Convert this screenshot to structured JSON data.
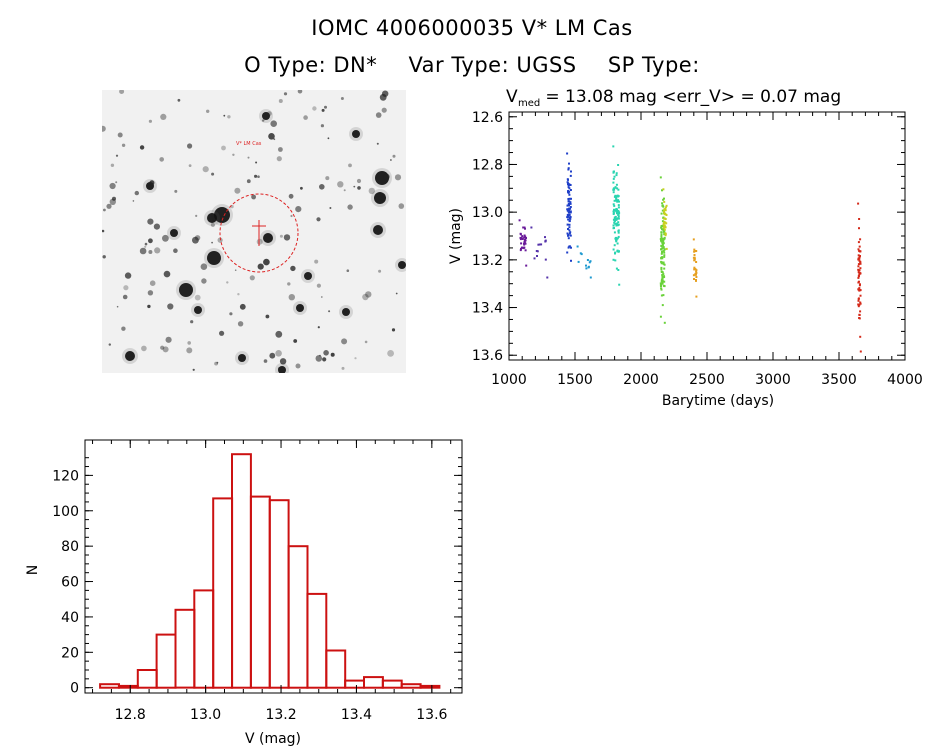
{
  "header": {
    "title": "IOMC 4006000035   V* LM Cas",
    "otype": "O Type: DN*",
    "vartype": "Var Type: UGSS",
    "sptype": "SP Type:"
  },
  "finder": {
    "label_top": "V* LM Cas",
    "colors": {
      "marker": "#dd2222",
      "stars": "#111111"
    }
  },
  "chart_data": [
    {
      "type": "scatter",
      "title_prefix": "V",
      "title_sub": "med",
      "title_rest": " = 13.08 mag <err_V> = 0.07 mag",
      "xlabel": "Barytime (days)",
      "ylabel": "V (mag)",
      "xlim": [
        1000,
        4000
      ],
      "ylim": [
        13.62,
        12.58
      ],
      "y_inverted": true,
      "xticks": [
        1000,
        1500,
        2000,
        2500,
        3000,
        3500,
        4000
      ],
      "yticks": [
        "12.6",
        "12.8",
        "13.0",
        "13.2",
        "13.4",
        "13.6"
      ],
      "grid": false,
      "clusters": [
        {
          "x": [
            1080,
            1130
          ],
          "ymin": 13.03,
          "ymax": 13.22,
          "n": 30,
          "color": "#6a1b9a"
        },
        {
          "x": [
            1170,
            1290
          ],
          "ymin": 13.06,
          "ymax": 13.27,
          "n": 12,
          "color": "#5533aa"
        },
        {
          "x": [
            1440,
            1470
          ],
          "ymin": 12.75,
          "ymax": 13.2,
          "n": 80,
          "color": "#1f3fc8"
        },
        {
          "x": [
            1520,
            1620
          ],
          "ymin": 13.14,
          "ymax": 13.27,
          "n": 10,
          "color": "#1f9ad0"
        },
        {
          "x": [
            1790,
            1835
          ],
          "ymin": 12.72,
          "ymax": 13.3,
          "n": 110,
          "color": "#2ad4b0"
        },
        {
          "x": [
            2150,
            2180
          ],
          "ymin": 12.85,
          "ymax": 13.46,
          "n": 110,
          "color": "#6ad23a"
        },
        {
          "x": [
            2170,
            2195
          ],
          "ymin": 12.9,
          "ymax": 13.15,
          "n": 30,
          "color": "#c8d020"
        },
        {
          "x": [
            2400,
            2420
          ],
          "ymin": 13.11,
          "ymax": 13.35,
          "n": 25,
          "color": "#e6a020"
        },
        {
          "x": [
            3645,
            3665
          ],
          "ymin": 12.96,
          "ymax": 13.58,
          "n": 60,
          "color": "#d42a1a"
        }
      ]
    },
    {
      "type": "bar",
      "subtype": "histogram",
      "xlabel": "V (mag)",
      "ylabel": "N",
      "xlim": [
        12.68,
        13.68
      ],
      "ylim": [
        -3,
        140
      ],
      "xticks": [
        "12.8",
        "13.0",
        "13.2",
        "13.4",
        "13.6"
      ],
      "yticks": [
        "0",
        "20",
        "40",
        "60",
        "80",
        "100",
        "120"
      ],
      "bin_width": 0.05,
      "bin_starts": [
        12.72,
        12.77,
        12.82,
        12.87,
        12.92,
        12.97,
        13.02,
        13.07,
        13.12,
        13.17,
        13.22,
        13.27,
        13.32,
        13.37,
        13.42,
        13.47,
        13.52,
        13.57
      ],
      "values": [
        2,
        1,
        10,
        30,
        44,
        55,
        107,
        132,
        108,
        106,
        80,
        53,
        21,
        4,
        6,
        4,
        2,
        1
      ],
      "color": "#cc1111"
    }
  ]
}
